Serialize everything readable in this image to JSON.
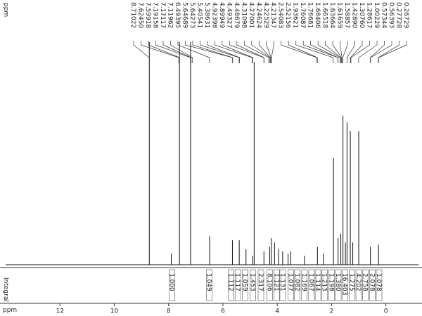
{
  "chart_data": {
    "type": "nmr",
    "top_unit": "ppm",
    "x_label": "ppm",
    "integral_label": "Integral",
    "xlim": [
      14,
      -1.2
    ],
    "xticks": [
      12,
      10,
      8,
      6,
      4,
      2,
      0
    ],
    "ylim": [
      0,
      100
    ],
    "color": "#111111",
    "peaks": {
      "values": [
        8.71022,
        7.6245,
        7.59918,
        7.19158,
        7.17117,
        7.11962,
        6.49395,
        5.64689,
        5.64273,
        5.40541,
        5.38631,
        4.92398,
        4.89949,
        4.49327,
        4.48679,
        4.31098,
        4.27001,
        4.24624,
        4.22529,
        4.21347,
        2.54083,
        2.52156,
        1.93621,
        1.76087,
        1.76681,
        1.68406,
        1.66518,
        1.63664,
        1.61659,
        1.58857,
        1.4289,
        1.3076,
        1.28617,
        1.00229,
        0.57344,
        0.56393,
        0.27728,
        0.26729
      ],
      "value_labels": [
        "8.71022",
        "7.62450",
        "7.59918",
        "7.19158",
        "7.17117",
        "7.11962",
        "6.49395",
        "5.64689",
        "5.64273",
        "5.40541",
        "5.38631",
        "4.92398",
        "4.89949",
        "4.49327",
        "4.48679",
        "4.31098",
        "4.27001",
        "4.24624",
        "4.22529",
        "4.21347",
        "2.54083",
        "2.52156",
        "1.93621",
        "1.76087",
        "1.76681",
        "1.68406",
        "1.66518",
        "1.63664",
        "1.61659",
        "1.58857",
        "1.42890",
        "1.30760",
        "1.28617",
        "1.00229",
        "0.57344",
        "0.56393",
        "0.27728",
        "0.26729"
      ]
    },
    "spectrum": {
      "x": [
        8.71,
        7.9,
        7.6,
        7.19,
        6.49,
        5.65,
        5.4,
        5.15,
        4.9,
        4.85,
        4.49,
        4.28,
        4.22,
        4.1,
        3.95,
        3.8,
        3.6,
        3.5,
        3.0,
        2.52,
        2.3,
        1.93,
        1.76,
        1.66,
        1.58,
        1.49,
        1.43,
        1.31,
        1.22,
        1.0,
        0.57,
        0.27
      ],
      "values": [
        100,
        5,
        100,
        100,
        13,
        11,
        11,
        7,
        4,
        91,
        6,
        8,
        12,
        10,
        7,
        6,
        5,
        6,
        4,
        8,
        5,
        48,
        12,
        14,
        67,
        10,
        64,
        60,
        10,
        60,
        8,
        9
      ]
    },
    "integrals": {
      "x": [
        7.87,
        6.5,
        5.7,
        5.45,
        5.18,
        4.9,
        4.6,
        4.28,
        4.02,
        3.8,
        3.5,
        3.26,
        3.0,
        2.74,
        2.5,
        2.26,
        2.0,
        1.75,
        1.5,
        1.25,
        1.0,
        0.75,
        0.5,
        0.25
      ],
      "values": [
        1,
        1.049,
        1.112,
        1.117,
        1.059,
        1.453,
        2.317,
        8.106,
        1.121,
        1.131,
        1.077,
        1.082,
        1.169,
        1.067,
        1.114,
        1.213,
        1.198,
        1.38,
        16.403,
        1.275,
        4.202,
        2.758,
        2.078,
        1.078
      ],
      "value_labels": [
        "1.000",
        "1.049",
        "1.112",
        "1.117",
        "1.059",
        "1.453",
        "2.317",
        "8.106",
        "1.121",
        "1.131",
        "1.077",
        "1.082",
        "1.169",
        "1.067",
        "1.114",
        "1.213",
        "1.198",
        "1.380",
        "16.403",
        "1.275",
        "4.202",
        "2.758",
        "2.078",
        "1.078"
      ]
    }
  }
}
